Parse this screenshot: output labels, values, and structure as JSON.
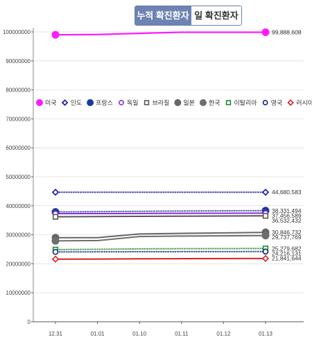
{
  "tabs": [
    {
      "label": "누적 확진환자",
      "active": true
    },
    {
      "label": "일 확진환자",
      "active": false
    }
  ],
  "chart_data": {
    "type": "line",
    "categories": [
      "12.31",
      "01.01",
      "01.10",
      "01.11",
      "01.12",
      "01.13"
    ],
    "ylim": [
      0,
      100000000
    ],
    "yticks": [
      0,
      10000000,
      20000000,
      30000000,
      40000000,
      50000000,
      60000000,
      70000000,
      80000000,
      90000000,
      100000000
    ],
    "ytick_labels": [
      "0",
      "10000000",
      "20000000",
      "30000000",
      "40000000",
      "50000000",
      "60000000",
      "70000000",
      "80000000",
      "90000000",
      "100000000"
    ],
    "grid": true,
    "legend_position": "middle-left, inside plot",
    "series": [
      {
        "name": "미국",
        "color": "#ff1aff",
        "marker": "filled-circle",
        "line": "solid",
        "end_label": "99,888,608",
        "values": [
          99000000,
          99100000,
          99500000,
          99888608,
          99888608,
          99888608
        ]
      },
      {
        "name": "인도",
        "color": "#1010b0",
        "marker": "open-diamond",
        "line": "dotted",
        "end_label": "44,680,583",
        "values": [
          44680583,
          44680583,
          44680583,
          44680583,
          44680583,
          44680583
        ]
      },
      {
        "name": "프랑스",
        "color": "#1a3a9c",
        "marker": "filled-circle",
        "line": "dotted",
        "end_label": "38,331,494",
        "values": [
          37900000,
          38000000,
          38100000,
          38200000,
          38270000,
          38331494
        ]
      },
      {
        "name": "독일",
        "color": "#8a2be2",
        "marker": "open-circle",
        "line": "solid",
        "end_label": "37,456,589",
        "values": [
          37300000,
          37330000,
          37360000,
          37400000,
          37430000,
          37456589
        ]
      },
      {
        "name": "브라질",
        "color": "#555555",
        "marker": "open-square",
        "line": "solid",
        "end_label": "36,532,432",
        "values": [
          36200000,
          36300000,
          36350000,
          36420000,
          36480000,
          36532432
        ]
      },
      {
        "name": "일본",
        "color": "#666666",
        "marker": "filled-circle",
        "line": "solid",
        "end_label": "30,846,732",
        "values": [
          29000000,
          29000000,
          30300000,
          30500000,
          30650000,
          30846732
        ]
      },
      {
        "name": "한국",
        "color": "#6e6e6e",
        "marker": "filled-circle",
        "line": "solid",
        "end_label": "29,737,769",
        "values": [
          27900000,
          28000000,
          29400000,
          29550000,
          29650000,
          29737769
        ]
      },
      {
        "name": "이탈리아",
        "color": "#1a8a2a",
        "marker": "open-square",
        "line": "dotted",
        "end_label": "25,279,682",
        "values": [
          24900000,
          25000000,
          25150000,
          25200000,
          25240000,
          25279682
        ]
      },
      {
        "name": "영국",
        "color": "#102a6e",
        "marker": "open-circle",
        "line": "dotted",
        "end_label": "24,216,131",
        "values": [
          24100000,
          24120000,
          24160000,
          24180000,
          24200000,
          24216131
        ]
      },
      {
        "name": "러시아",
        "color": "#d62020",
        "marker": "open-diamond",
        "line": "solid",
        "end_label": "21,841,644",
        "values": [
          21600000,
          21620000,
          21700000,
          21760000,
          21800000,
          21841644
        ]
      }
    ]
  }
}
